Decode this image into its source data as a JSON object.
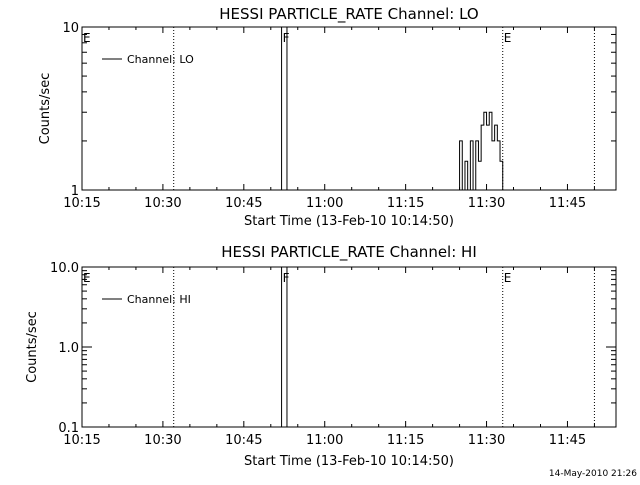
{
  "footer": {
    "timestamp": "14-May-2010 21:26"
  },
  "chart_data": [
    {
      "type": "line",
      "title": "HESSI PARTICLE_RATE Channel: LO",
      "xlabel": "Start Time (13-Feb-10 10:14:50)",
      "ylabel": "Counts/sec",
      "y_scale": "log",
      "ylim": [
        1,
        10
      ],
      "xlim": [
        "10:15",
        "11:54"
      ],
      "x_ticks": [
        "10:15",
        "10:30",
        "10:45",
        "11:00",
        "11:15",
        "11:30",
        "11:45"
      ],
      "y_ticks": [
        "1",
        "10"
      ],
      "legend": {
        "entries": [
          "Channel: LO"
        ],
        "position": "top-left"
      },
      "grid": false,
      "event_markers": [
        {
          "label": "E",
          "time": "10:15",
          "style": "none"
        },
        {
          "label": "",
          "time": "10:32",
          "style": "dotted"
        },
        {
          "label": "F",
          "time": "10:52",
          "style": "solid"
        },
        {
          "label": "",
          "time": "10:53",
          "style": "solid"
        },
        {
          "label": "E",
          "time": "11:33",
          "style": "dotted"
        },
        {
          "label": "",
          "time": "11:50",
          "style": "dotted"
        }
      ],
      "series": [
        {
          "name": "Channel: LO",
          "x": [
            "11:25",
            "11:25.5",
            "11:26",
            "11:26.5",
            "11:27",
            "11:27.5",
            "11:28",
            "11:28.5",
            "11:29",
            "11:29.5",
            "11:30",
            "11:30.5",
            "11:31",
            "11:31.5",
            "11:32",
            "11:32.5",
            "11:33"
          ],
          "values": [
            2,
            1,
            1.5,
            1,
            2,
            1,
            2,
            1.5,
            2.5,
            3,
            2.5,
            3,
            2,
            2.5,
            2,
            1.5,
            1
          ]
        }
      ]
    },
    {
      "type": "line",
      "title": "HESSI PARTICLE_RATE Channel: HI",
      "xlabel": "Start Time (13-Feb-10 10:14:50)",
      "ylabel": "Counts/sec",
      "y_scale": "log",
      "ylim": [
        0.1,
        10
      ],
      "xlim": [
        "10:15",
        "11:54"
      ],
      "x_ticks": [
        "10:15",
        "10:30",
        "10:45",
        "11:00",
        "11:15",
        "11:30",
        "11:45"
      ],
      "y_ticks": [
        "0.1",
        "1.0",
        "10.0"
      ],
      "legend": {
        "entries": [
          "Channel: HI"
        ],
        "position": "top-left"
      },
      "grid": false,
      "event_markers": [
        {
          "label": "E",
          "time": "10:15",
          "style": "none"
        },
        {
          "label": "",
          "time": "10:32",
          "style": "dotted"
        },
        {
          "label": "F",
          "time": "10:52",
          "style": "solid"
        },
        {
          "label": "",
          "time": "10:53",
          "style": "solid"
        },
        {
          "label": "E",
          "time": "11:33",
          "style": "dotted"
        },
        {
          "label": "",
          "time": "11:50",
          "style": "dotted"
        }
      ],
      "series": [
        {
          "name": "Channel: HI",
          "x": [],
          "values": []
        }
      ]
    }
  ]
}
